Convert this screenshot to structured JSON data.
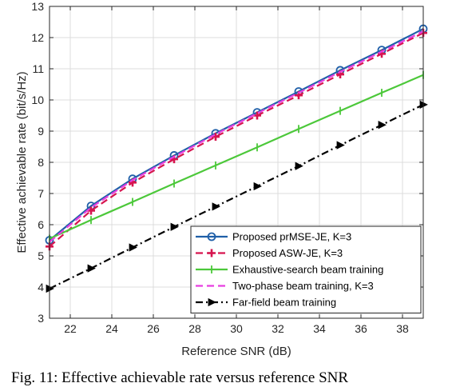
{
  "caption": "Fig. 11: Effective achievable rate versus reference SNR",
  "chart_data": {
    "type": "line",
    "xlabel": "Reference SNR (dB)",
    "ylabel": "Effective achievable rate (bit/s/Hz)",
    "xlim": [
      21,
      39
    ],
    "ylim": [
      3,
      13
    ],
    "xticks": [
      22,
      24,
      26,
      28,
      30,
      32,
      34,
      36,
      38
    ],
    "yticks": [
      3,
      4,
      5,
      6,
      7,
      8,
      9,
      10,
      11,
      12,
      13
    ],
    "grid": true,
    "legend_position": "bottom-right",
    "series": [
      {
        "name": "Proposed prMSE-JE, K=3",
        "color": "#1f5fa8",
        "line_style": "solid",
        "marker": "circle",
        "x": [
          21,
          23,
          25,
          27,
          29,
          31,
          33,
          35,
          37,
          39
        ],
        "y": [
          5.5,
          6.6,
          7.47,
          8.22,
          8.93,
          9.6,
          10.27,
          10.95,
          11.6,
          12.28
        ]
      },
      {
        "name": "Proposed ASW-JE, K=3",
        "color": "#d6154f",
        "line_style": "dashed",
        "marker": "plus",
        "x": [
          21,
          23,
          25,
          27,
          29,
          31,
          33,
          35,
          37,
          39
        ],
        "y": [
          5.3,
          6.45,
          7.35,
          8.1,
          8.82,
          9.5,
          10.15,
          10.82,
          11.48,
          12.15
        ]
      },
      {
        "name": "Exhaustive-search beam training",
        "color": "#4cc83a",
        "line_style": "solid",
        "marker": "vline",
        "x": [
          21,
          23,
          25,
          27,
          29,
          31,
          33,
          35,
          37,
          39
        ],
        "y": [
          5.55,
          6.15,
          6.73,
          7.32,
          7.9,
          8.48,
          9.07,
          9.65,
          10.23,
          10.8
        ]
      },
      {
        "name": "Two-phase beam training, K=3",
        "color": "#e83ee0",
        "line_style": "dashed",
        "marker": "none",
        "x": [
          21,
          23,
          25,
          27,
          29,
          31,
          33,
          35,
          37,
          39
        ],
        "y": [
          5.45,
          6.55,
          7.43,
          8.18,
          8.9,
          9.57,
          10.23,
          10.9,
          11.55,
          12.2
        ]
      },
      {
        "name": "Far-field beam training",
        "color": "#000000",
        "line_style": "dashdot",
        "marker": "triangle-right",
        "x": [
          21,
          23,
          25,
          27,
          29,
          31,
          33,
          35,
          37,
          39
        ],
        "y": [
          3.95,
          4.6,
          5.27,
          5.93,
          6.58,
          7.23,
          7.88,
          8.55,
          9.2,
          9.85
        ]
      }
    ]
  }
}
